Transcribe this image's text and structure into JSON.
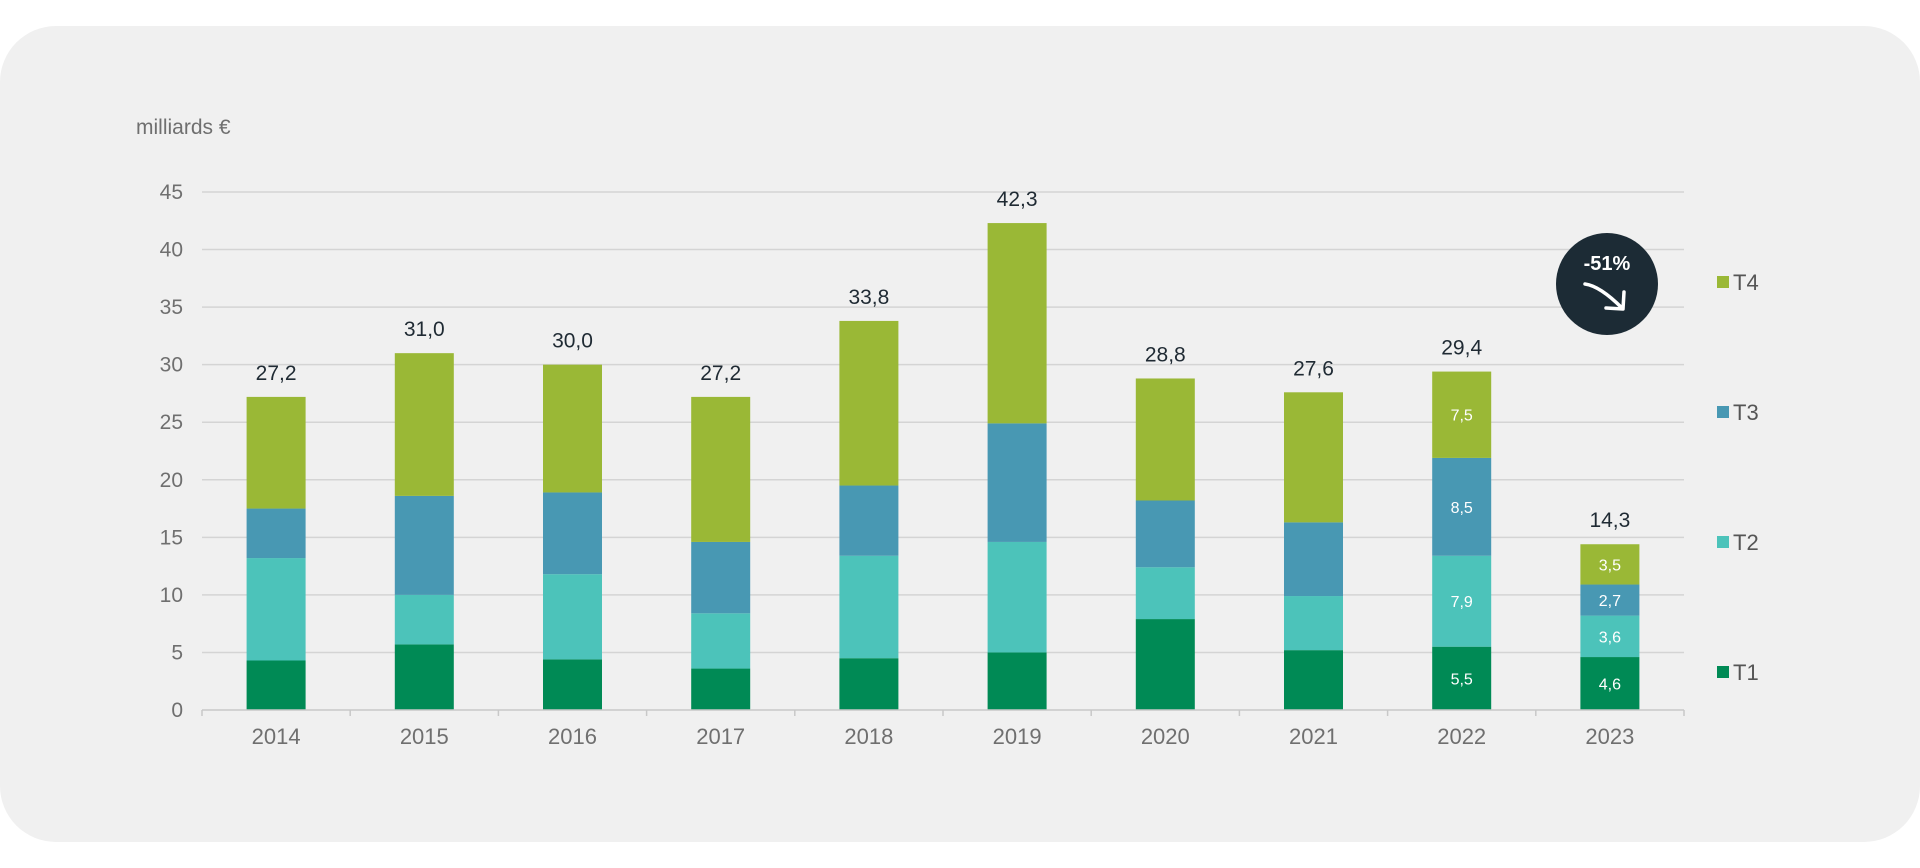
{
  "chart_data": {
    "type": "bar",
    "stacked": true,
    "unit_label": "milliards €",
    "categories": [
      "2014",
      "2015",
      "2016",
      "2017",
      "2018",
      "2019",
      "2020",
      "2021",
      "2022",
      "2023"
    ],
    "series": [
      {
        "name": "T1",
        "color": "#008a55",
        "values": [
          4.3,
          5.7,
          4.4,
          3.6,
          4.5,
          5.0,
          7.9,
          5.2,
          5.5,
          4.6
        ]
      },
      {
        "name": "T2",
        "color": "#4cc3ba",
        "values": [
          8.9,
          4.3,
          7.4,
          4.8,
          8.9,
          9.6,
          4.5,
          4.7,
          7.9,
          3.6
        ]
      },
      {
        "name": "T3",
        "color": "#4898b3",
        "values": [
          4.3,
          8.6,
          7.1,
          6.2,
          6.1,
          10.3,
          5.8,
          6.4,
          8.5,
          2.7
        ]
      },
      {
        "name": "T4",
        "color": "#9ab836",
        "values": [
          9.7,
          12.4,
          11.1,
          12.6,
          14.3,
          17.4,
          10.6,
          11.3,
          7.5,
          3.5
        ]
      }
    ],
    "totals": [
      "27,2",
      "31,0",
      "30,0",
      "27,2",
      "33,8",
      "42,3",
      "28,8",
      "27,6",
      "29,4",
      "14,3"
    ],
    "segment_labels": [
      {
        "category": "2022",
        "series": "T1",
        "text": "5,5"
      },
      {
        "category": "2022",
        "series": "T2",
        "text": "7,9"
      },
      {
        "category": "2022",
        "series": "T3",
        "text": "8,5"
      },
      {
        "category": "2022",
        "series": "T4",
        "text": "7,5"
      },
      {
        "category": "2023",
        "series": "T1",
        "text": "4,6"
      },
      {
        "category": "2023",
        "series": "T2",
        "text": "3,6"
      },
      {
        "category": "2023",
        "series": "T3",
        "text": "2,7"
      },
      {
        "category": "2023",
        "series": "T4",
        "text": "3,5"
      }
    ],
    "ylim": [
      0,
      45
    ],
    "yticks": [
      0,
      5,
      10,
      15,
      20,
      25,
      30,
      35,
      40,
      45
    ],
    "grid": true,
    "legend_position": "right",
    "annotation": {
      "text": "-51%",
      "icon": "arrow-down-right-icon",
      "color": "#1c2b35"
    }
  }
}
